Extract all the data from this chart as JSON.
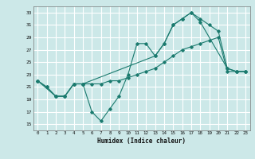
{
  "title": "",
  "xlabel": "Humidex (Indice chaleur)",
  "bg_color": "#cce8e8",
  "grid_color": "#ffffff",
  "line_color": "#1a7a6e",
  "xlim": [
    -0.5,
    23.5
  ],
  "ylim": [
    14,
    34
  ],
  "xticks": [
    0,
    1,
    2,
    3,
    4,
    5,
    6,
    7,
    8,
    9,
    10,
    11,
    12,
    13,
    14,
    15,
    16,
    17,
    18,
    19,
    20,
    21,
    22,
    23
  ],
  "yticks": [
    15,
    17,
    19,
    21,
    23,
    25,
    27,
    29,
    31,
    33
  ],
  "line1_x": [
    0,
    1,
    2,
    3,
    4,
    5,
    6,
    7,
    8,
    9,
    10,
    11,
    12,
    13,
    14,
    15,
    16,
    17,
    18,
    19,
    20,
    21,
    22,
    23
  ],
  "line1_y": [
    22,
    21,
    19.5,
    19.5,
    21.5,
    21.5,
    17,
    15.5,
    17.5,
    19.5,
    23,
    28,
    28,
    26,
    28,
    31,
    32,
    33,
    32,
    31,
    30,
    24,
    23.5,
    23.5
  ],
  "line2_x": [
    0,
    1,
    2,
    3,
    4,
    5,
    6,
    7,
    8,
    9,
    10,
    11,
    12,
    13,
    14,
    15,
    16,
    17,
    18,
    19,
    20,
    21,
    22,
    23
  ],
  "line2_y": [
    22,
    21,
    19.5,
    19.5,
    21.5,
    21.5,
    21.5,
    21.5,
    22,
    22,
    22.5,
    23,
    23.5,
    24,
    25,
    26,
    27,
    27.5,
    28,
    28.5,
    29,
    23.5,
    23.5,
    23.5
  ],
  "line3_x": [
    0,
    2,
    3,
    4,
    5,
    13,
    14,
    15,
    16,
    17,
    18,
    21,
    22,
    23
  ],
  "line3_y": [
    22,
    19.5,
    19.5,
    21.5,
    21.5,
    26,
    28,
    31,
    32,
    33,
    31.5,
    24,
    23.5,
    23.5
  ]
}
